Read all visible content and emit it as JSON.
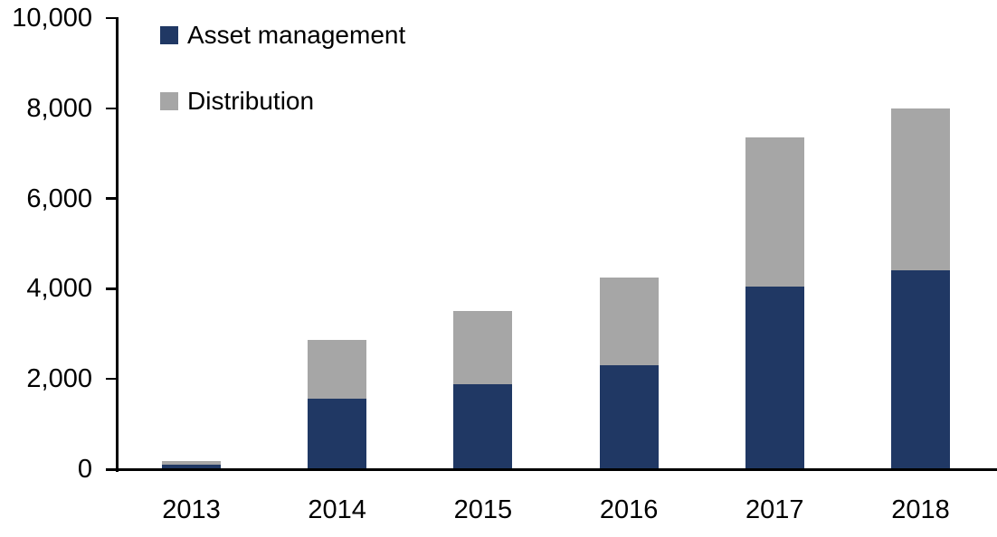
{
  "chart_data": {
    "type": "bar",
    "stacked": true,
    "title": "",
    "xlabel": "",
    "ylabel": "",
    "categories": [
      "2013",
      "2014",
      "2015",
      "2016",
      "2017",
      "2018"
    ],
    "series": [
      {
        "name": "Asset management",
        "color": "#203864",
        "values": [
          110,
          1560,
          1880,
          2300,
          4040,
          4400
        ]
      },
      {
        "name": "Distribution",
        "color": "#A6A6A6",
        "values": [
          80,
          1300,
          1620,
          1940,
          3320,
          3600
        ]
      }
    ],
    "totals": [
      190,
      2860,
      3500,
      4240,
      7360,
      8000
    ],
    "ylim": [
      0,
      10000
    ],
    "ytick_values": [
      0,
      2000,
      4000,
      6000,
      8000,
      10000
    ],
    "ytick_labels": [
      "0",
      "2,000",
      "4,000",
      "6,000",
      "8,000",
      "10,000"
    ],
    "grid": false,
    "legend_position": "top-left"
  },
  "colors": {
    "axis": "#000000",
    "background": "#FFFFFF",
    "asset_management": "#203864",
    "distribution": "#A6A6A6"
  }
}
